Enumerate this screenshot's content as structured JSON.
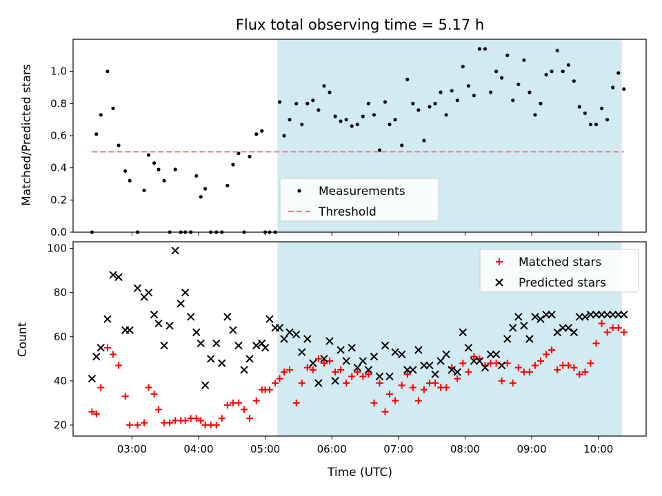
{
  "chart_data": [
    {
      "type": "scatter",
      "title": "Flux total observing time = 5.17 h",
      "xlabel": "",
      "ylabel": "Matched/Predicted stars",
      "xlim": [
        "02:07",
        "10:43"
      ],
      "ylim": [
        0,
        1.2
      ],
      "x_ticks": [
        "03:00",
        "04:00",
        "05:00",
        "06:00",
        "07:00",
        "08:00",
        "09:00",
        "10:00"
      ],
      "y_ticks": [
        "0.0",
        "0.2",
        "0.4",
        "0.6",
        "0.8",
        "1.0"
      ],
      "shaded_region": {
        "from": "05:11",
        "to": "10:21",
        "color": "#add8e6"
      },
      "legend": {
        "location": "lower-center",
        "entries": [
          "Measurements",
          "Threshold"
        ]
      },
      "series": [
        {
          "name": "Measurements",
          "marker": "dot",
          "color": "#000000",
          "x": [
            "02:24",
            "02:28",
            "02:32",
            "02:38",
            "02:43",
            "02:48",
            "02:54",
            "02:58",
            "03:05",
            "03:11",
            "03:15",
            "03:20",
            "03:24",
            "03:29",
            "03:34",
            "03:39",
            "03:44",
            "03:48",
            "03:53",
            "03:58",
            "04:02",
            "04:06",
            "04:11",
            "04:16",
            "04:21",
            "04:26",
            "04:31",
            "04:36",
            "04:41",
            "04:46",
            "04:52",
            "04:57",
            "05:00",
            "05:04",
            "05:09",
            "05:13",
            "05:17",
            "05:22",
            "05:28",
            "05:33",
            "05:38",
            "05:43",
            "05:48",
            "05:53",
            "05:58",
            "06:03",
            "06:08",
            "06:13",
            "06:18",
            "06:23",
            "06:28",
            "06:33",
            "06:38",
            "06:43",
            "06:48",
            "06:52",
            "06:57",
            "07:03",
            "07:08",
            "07:13",
            "07:18",
            "07:23",
            "07:28",
            "07:33",
            "07:38",
            "07:43",
            "07:48",
            "07:53",
            "07:58",
            "08:03",
            "08:08",
            "08:13",
            "08:18",
            "08:23",
            "08:28",
            "08:33",
            "08:38",
            "08:43",
            "08:48",
            "08:53",
            "08:58",
            "09:03",
            "09:08",
            "09:13",
            "09:18",
            "09:23",
            "09:28",
            "09:33",
            "09:38",
            "09:43",
            "09:48",
            "09:53",
            "09:58",
            "10:03",
            "10:08",
            "10:13",
            "10:18",
            "10:23"
          ],
          "y": [
            0,
            0.61,
            0.73,
            1.0,
            0.77,
            0.54,
            0.38,
            0.32,
            0,
            0.26,
            0.48,
            0.43,
            0.39,
            0.32,
            0,
            0.39,
            0,
            0,
            0,
            0.35,
            0.22,
            0.27,
            0,
            0,
            0,
            0.29,
            0.42,
            0.49,
            0,
            0.47,
            0.61,
            0.63,
            0,
            0,
            0,
            0.81,
            0.6,
            0.7,
            0.8,
            0.67,
            0.8,
            0.82,
            0.76,
            0.91,
            0.87,
            0.72,
            0.69,
            0.7,
            0.66,
            0.67,
            0.72,
            0.8,
            0.73,
            0.51,
            0.81,
            0.67,
            0.7,
            0.54,
            0.95,
            0.8,
            0.76,
            0.57,
            0.78,
            0.8,
            0.87,
            0.73,
            0.88,
            0.82,
            1.03,
            0.91,
            0.85,
            1.14,
            1.14,
            0.87,
            1.0,
            0.96,
            1.1,
            0.82,
            0.92,
            1.07,
            0.87,
            0.73,
            0.8,
            0.98,
            1.0,
            1.13,
            1.0,
            1.04,
            0.94,
            0.78,
            0.74,
            0.67,
            0.67,
            0.77,
            0.7,
            0.9,
            0.99,
            0.89
          ]
        },
        {
          "name": "Threshold",
          "style": "dashed",
          "color": "#f08080",
          "x": [
            "02:24",
            "10:23"
          ],
          "y": [
            0.5,
            0.5
          ]
        }
      ]
    },
    {
      "type": "scatter",
      "title": "",
      "xlabel": "Time (UTC)",
      "ylabel": "Count",
      "xlim": [
        "02:07",
        "10:43"
      ],
      "ylim": [
        15,
        103
      ],
      "x_ticks": [
        "03:00",
        "04:00",
        "05:00",
        "06:00",
        "07:00",
        "08:00",
        "09:00",
        "10:00"
      ],
      "y_ticks": [
        "20",
        "40",
        "60",
        "80",
        "100"
      ],
      "shaded_region": {
        "from": "05:11",
        "to": "10:21",
        "color": "#add8e6"
      },
      "legend": {
        "location": "upper-right",
        "entries": [
          "Matched stars",
          "Predicted stars"
        ]
      },
      "series": [
        {
          "name": "Matched stars",
          "marker": "plus",
          "color": "#ff0000",
          "x": [
            "02:24",
            "02:28",
            "02:32",
            "02:38",
            "02:43",
            "02:48",
            "02:54",
            "02:58",
            "03:05",
            "03:11",
            "03:15",
            "03:20",
            "03:24",
            "03:29",
            "03:34",
            "03:39",
            "03:44",
            "03:48",
            "03:53",
            "03:58",
            "04:02",
            "04:06",
            "04:11",
            "04:16",
            "04:21",
            "04:26",
            "04:31",
            "04:36",
            "04:41",
            "04:46",
            "04:52",
            "04:57",
            "05:00",
            "05:04",
            "05:09",
            "05:13",
            "05:17",
            "05:22",
            "05:28",
            "05:33",
            "05:38",
            "05:43",
            "05:48",
            "05:53",
            "05:58",
            "06:03",
            "06:08",
            "06:13",
            "06:18",
            "06:23",
            "06:28",
            "06:33",
            "06:38",
            "06:43",
            "06:48",
            "06:52",
            "06:57",
            "07:03",
            "07:08",
            "07:13",
            "07:18",
            "07:23",
            "07:28",
            "07:33",
            "07:38",
            "07:43",
            "07:48",
            "07:53",
            "07:58",
            "08:03",
            "08:08",
            "08:13",
            "08:18",
            "08:23",
            "08:28",
            "08:33",
            "08:38",
            "08:43",
            "08:48",
            "08:53",
            "08:58",
            "09:03",
            "09:08",
            "09:13",
            "09:18",
            "09:23",
            "09:28",
            "09:33",
            "09:38",
            "09:43",
            "09:48",
            "09:53",
            "09:58",
            "10:03",
            "10:08",
            "10:13",
            "10:18",
            "10:23"
          ],
          "y": [
            26,
            25,
            37,
            55,
            52,
            47,
            33,
            20,
            20,
            21,
            37,
            34,
            27,
            21,
            21,
            22,
            22,
            22,
            23,
            23,
            22,
            20,
            20,
            20,
            23,
            29,
            30,
            30,
            27,
            23,
            31,
            36,
            36,
            36,
            39,
            41,
            44,
            45,
            30,
            39,
            46,
            45,
            50,
            48,
            49,
            44,
            45,
            39,
            42,
            44,
            42,
            43,
            30,
            39,
            26,
            34,
            31,
            38,
            43,
            37,
            31,
            36,
            39,
            39,
            37,
            37,
            46,
            41,
            48,
            44,
            51,
            50,
            47,
            48,
            48,
            40,
            48,
            39,
            46,
            44,
            44,
            47,
            49,
            52,
            54,
            45,
            47,
            47,
            46,
            43,
            44,
            48,
            57,
            66,
            62,
            64,
            64,
            62
          ]
        },
        {
          "name": "Predicted stars",
          "marker": "x",
          "color": "#000000",
          "x": [
            "02:24",
            "02:28",
            "02:32",
            "02:38",
            "02:43",
            "02:48",
            "02:54",
            "02:58",
            "03:05",
            "03:11",
            "03:15",
            "03:20",
            "03:24",
            "03:29",
            "03:34",
            "03:39",
            "03:44",
            "03:48",
            "03:53",
            "03:58",
            "04:02",
            "04:06",
            "04:11",
            "04:16",
            "04:21",
            "04:26",
            "04:31",
            "04:36",
            "04:41",
            "04:46",
            "04:52",
            "04:57",
            "05:00",
            "05:04",
            "05:09",
            "05:13",
            "05:17",
            "05:22",
            "05:28",
            "05:33",
            "05:38",
            "05:43",
            "05:48",
            "05:53",
            "05:58",
            "06:03",
            "06:08",
            "06:13",
            "06:18",
            "06:23",
            "06:28",
            "06:33",
            "06:38",
            "06:43",
            "06:48",
            "06:52",
            "06:57",
            "07:03",
            "07:08",
            "07:13",
            "07:18",
            "07:23",
            "07:28",
            "07:33",
            "07:38",
            "07:43",
            "07:48",
            "07:53",
            "07:58",
            "08:03",
            "08:08",
            "08:13",
            "08:18",
            "08:23",
            "08:28",
            "08:33",
            "08:38",
            "08:43",
            "08:48",
            "08:53",
            "08:58",
            "09:03",
            "09:08",
            "09:13",
            "09:18",
            "09:23",
            "09:28",
            "09:33",
            "09:38",
            "09:43",
            "09:48",
            "09:53",
            "09:58",
            "10:03",
            "10:08",
            "10:13",
            "10:18",
            "10:23"
          ],
          "y": [
            41,
            51,
            55,
            68,
            88,
            87,
            63,
            63,
            82,
            78,
            80,
            70,
            66,
            56,
            65,
            99,
            75,
            80,
            69,
            62,
            57,
            38,
            50,
            57,
            48,
            69,
            63,
            56,
            45,
            50,
            56,
            57,
            55,
            68,
            64,
            64,
            59,
            62,
            61,
            53,
            59,
            48,
            39,
            50,
            58,
            40,
            54,
            49,
            55,
            46,
            49,
            45,
            51,
            42,
            56,
            42,
            53,
            52,
            45,
            45,
            54,
            47,
            47,
            43,
            49,
            52,
            45,
            44,
            62,
            55,
            49,
            49,
            46,
            52,
            52,
            47,
            59,
            64,
            69,
            65,
            59,
            69,
            68,
            70,
            70,
            62,
            64,
            64,
            62,
            69,
            69,
            70,
            70,
            70,
            70,
            70,
            70,
            70
          ]
        }
      ]
    }
  ]
}
